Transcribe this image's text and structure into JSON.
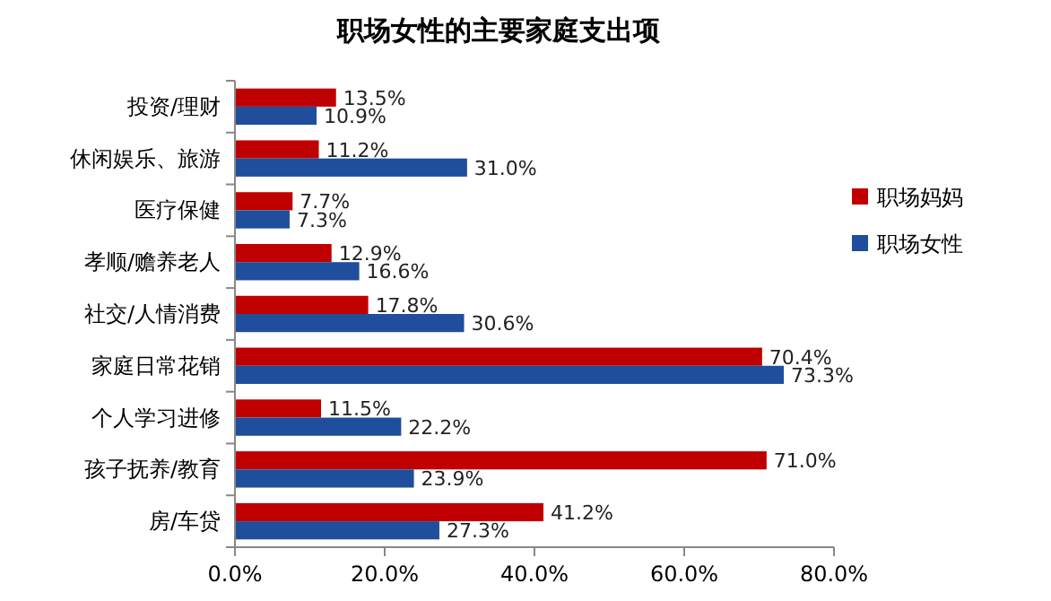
{
  "chart_data": {
    "type": "bar",
    "orientation": "horizontal",
    "title": "职场女性的主要家庭支出项",
    "categories": [
      "投资/理财",
      "休闲娱乐、旅游",
      "医疗保健",
      "孝顺/赡养老人",
      "社交/人情消费",
      "家庭日常花销",
      "个人学习进修",
      "孩子抚养/教育",
      "房/车贷"
    ],
    "series": [
      {
        "name": "职场妈妈",
        "color": "#c00000",
        "values": [
          13.5,
          11.2,
          7.7,
          12.9,
          17.8,
          70.4,
          11.5,
          71.0,
          41.2
        ],
        "value_labels": [
          "13.5%",
          "11.2%",
          "7.7%",
          "12.9%",
          "17.8%",
          "70.4%",
          "11.5%",
          "71.0%",
          "41.2%"
        ]
      },
      {
        "name": "职场女性",
        "color": "#1f4e9c",
        "values": [
          10.9,
          31.0,
          7.3,
          16.6,
          30.6,
          73.3,
          22.2,
          23.9,
          27.3
        ],
        "value_labels": [
          "10.9%",
          "31.0%",
          "7.3%",
          "16.6%",
          "30.6%",
          "73.3%",
          "22.2%",
          "23.9%",
          "27.3%"
        ]
      }
    ],
    "xlim": [
      0,
      80
    ],
    "xticks": [
      {
        "value": 0,
        "label": "0.0%"
      },
      {
        "value": 20,
        "label": "20.0%"
      },
      {
        "value": 40,
        "label": "40.0%"
      },
      {
        "value": 60,
        "label": "60.0%"
      },
      {
        "value": 80,
        "label": "80.0%"
      }
    ],
    "grid": false,
    "legend": "right"
  }
}
